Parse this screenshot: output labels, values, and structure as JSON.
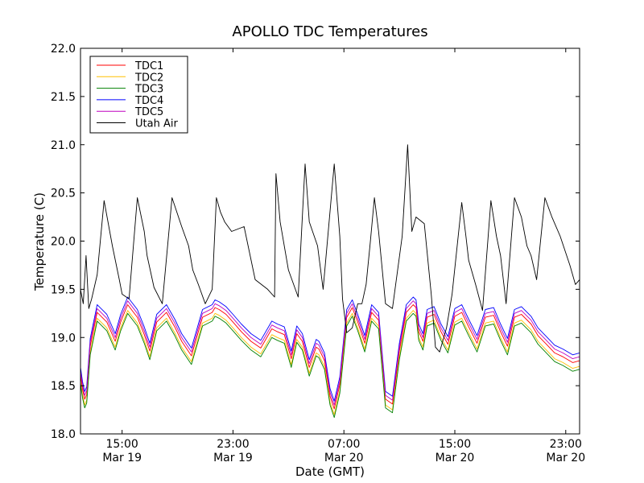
{
  "chart_data": {
    "type": "line",
    "title": "APOLLO TDC Temperatures",
    "xlabel": "Date (GMT)",
    "ylabel": "Temperature (C)",
    "xlim_hours": [
      12.0,
      48.0
    ],
    "ylim": [
      18.0,
      22.0
    ],
    "grid": false,
    "legend_position": "top-left",
    "y_ticks": [
      18.0,
      18.5,
      19.0,
      19.5,
      20.0,
      20.5,
      21.0,
      21.5,
      22.0
    ],
    "y_tick_labels": [
      "18.0",
      "18.5",
      "19.0",
      "19.5",
      "20.0",
      "20.5",
      "21.0",
      "21.5",
      "22.0"
    ],
    "x_ticks": [
      {
        "hour": 15,
        "time": "15:00",
        "date": "Mar 19"
      },
      {
        "hour": 23,
        "time": "23:00",
        "date": "Mar 19"
      },
      {
        "hour": 31,
        "time": "07:00",
        "date": "Mar 20"
      },
      {
        "hour": 39,
        "time": "15:00",
        "date": "Mar 20"
      },
      {
        "hour": 47,
        "time": "23:00",
        "date": "Mar 20"
      }
    ],
    "tdc_base": {
      "x": [
        12.0,
        12.15,
        12.3,
        12.45,
        12.7,
        13.2,
        13.9,
        14.5,
        14.9,
        15.4,
        16.1,
        16.6,
        17.0,
        17.5,
        18.2,
        18.8,
        19.3,
        20.0,
        20.8,
        21.5,
        21.7,
        22.0,
        22.5,
        23.0,
        23.6,
        24.3,
        25.0,
        25.8,
        26.2,
        26.7,
        27.2,
        27.6,
        28.0,
        28.5,
        29.0,
        29.2,
        29.6,
        30.0,
        30.3,
        30.7,
        31.2,
        31.6,
        32.0,
        32.5,
        33.0,
        33.5,
        34.0,
        34.5,
        35.0,
        35.5,
        36.0,
        36.2,
        36.4,
        36.7,
        37.0,
        37.5,
        38.0,
        38.5,
        39.0,
        39.5,
        40.0,
        40.6,
        41.2,
        41.8,
        42.3,
        42.8,
        43.3,
        43.8,
        44.5,
        45.0,
        45.6,
        46.2,
        46.8,
        47.5,
        48.0
      ],
      "y": [
        18.55,
        18.4,
        18.3,
        18.35,
        18.85,
        19.2,
        19.1,
        18.9,
        19.1,
        19.28,
        19.15,
        18.97,
        18.8,
        19.1,
        19.2,
        19.05,
        18.9,
        18.75,
        19.15,
        19.2,
        19.25,
        19.23,
        19.18,
        19.1,
        19.0,
        18.9,
        18.83,
        19.03,
        19.0,
        18.97,
        18.72,
        18.98,
        18.9,
        18.63,
        18.84,
        18.82,
        18.7,
        18.33,
        18.2,
        18.45,
        19.15,
        19.25,
        19.1,
        18.88,
        19.2,
        19.12,
        18.3,
        18.25,
        18.8,
        19.2,
        19.28,
        19.25,
        19.0,
        18.9,
        19.15,
        19.18,
        19.0,
        18.87,
        19.16,
        19.2,
        19.05,
        18.88,
        19.15,
        19.17,
        19.0,
        18.85,
        19.15,
        19.18,
        19.08,
        18.96,
        18.87,
        18.78,
        18.74,
        18.68,
        18.7
      ]
    },
    "series": [
      {
        "name": "TDC1",
        "color": "#ff0000",
        "offset": 0.06
      },
      {
        "name": "TDC2",
        "color": "#ffbf00",
        "offset": 0.0
      },
      {
        "name": "TDC3",
        "color": "#008000",
        "offset": -0.03
      },
      {
        "name": "TDC4",
        "color": "#0000ff",
        "offset": 0.14
      },
      {
        "name": "TDC5",
        "color": "#bf00bf",
        "offset": 0.1
      },
      {
        "name": "Utah Air",
        "color": "#000000",
        "x": [
          12.0,
          12.2,
          12.4,
          12.6,
          12.8,
          13.2,
          13.7,
          14.3,
          14.8,
          15.0,
          15.5,
          16.1,
          16.6,
          16.8,
          17.3,
          17.9,
          18.6,
          19.3,
          19.8,
          20.1,
          20.5,
          21.0,
          21.5,
          21.8,
          22.1,
          22.4,
          22.9,
          23.8,
          24.6,
          25.5,
          26.0,
          26.1,
          26.4,
          27.0,
          27.7,
          28.2,
          28.5,
          29.1,
          29.5,
          30.3,
          30.7,
          30.9,
          31.2,
          31.6,
          32.0,
          32.3,
          32.6,
          32.9,
          33.2,
          33.5,
          34.0,
          34.5,
          35.2,
          35.6,
          35.9,
          36.2,
          36.8,
          37.3,
          37.6,
          37.9,
          38.4,
          38.8,
          39.5,
          39.8,
          40.0,
          40.5,
          41.0,
          41.6,
          42.0,
          42.3,
          42.7,
          43.3,
          43.8,
          44.2,
          44.5,
          44.9,
          45.5,
          46.0,
          46.6,
          47.3,
          47.7,
          48.0
        ],
        "y": [
          19.5,
          19.35,
          19.85,
          19.3,
          19.4,
          19.65,
          20.42,
          19.95,
          19.6,
          19.45,
          19.4,
          20.45,
          20.1,
          19.85,
          19.52,
          19.35,
          20.45,
          20.15,
          19.95,
          19.7,
          19.55,
          19.35,
          19.5,
          20.45,
          20.3,
          20.2,
          20.1,
          20.15,
          19.6,
          19.5,
          19.42,
          20.7,
          20.2,
          19.7,
          19.42,
          20.8,
          20.2,
          19.95,
          19.5,
          20.8,
          20.05,
          19.4,
          19.05,
          19.1,
          19.35,
          19.35,
          19.55,
          19.98,
          20.45,
          20.1,
          19.35,
          19.3,
          20.05,
          21.0,
          20.1,
          20.25,
          20.18,
          19.45,
          18.9,
          18.85,
          19.1,
          19.45,
          20.4,
          20.05,
          19.8,
          19.55,
          19.28,
          20.42,
          20.05,
          19.85,
          19.35,
          20.45,
          20.25,
          19.95,
          19.85,
          19.6,
          20.45,
          20.25,
          20.05,
          19.75,
          19.55,
          19.6
        ]
      }
    ]
  }
}
